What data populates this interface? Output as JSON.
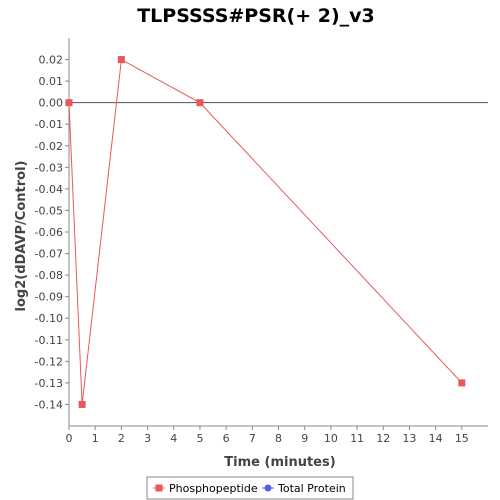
{
  "chart_data": {
    "type": "line",
    "title": "TLPSSSS#PSR(+ 2)_v3",
    "xlabel": "Time (minutes)",
    "ylabel": "log2(dDAVP/Control)",
    "xlim": [
      0,
      16
    ],
    "ylim": [
      -0.15,
      0.03
    ],
    "x_ticks": [
      0,
      1,
      2,
      3,
      4,
      5,
      6,
      7,
      8,
      9,
      10,
      11,
      12,
      13,
      14,
      15
    ],
    "y_ticks": [
      0.02,
      0.01,
      0.0,
      -0.01,
      -0.02,
      -0.03,
      -0.04,
      -0.05,
      -0.06,
      -0.07,
      -0.08,
      -0.09,
      -0.1,
      -0.11,
      -0.12,
      -0.13,
      -0.14
    ],
    "zero_line": true,
    "grid": false,
    "legend_position": "bottom",
    "series": [
      {
        "name": "Phosphopeptide",
        "color": "#e8585a",
        "marker": "square",
        "x": [
          0,
          0.5,
          2,
          5,
          15
        ],
        "y": [
          0.0,
          -0.14,
          0.02,
          0.0,
          -0.13
        ]
      },
      {
        "name": "Total Protein",
        "color": "#5a5af0",
        "marker": "circle",
        "x": [],
        "y": []
      }
    ]
  }
}
